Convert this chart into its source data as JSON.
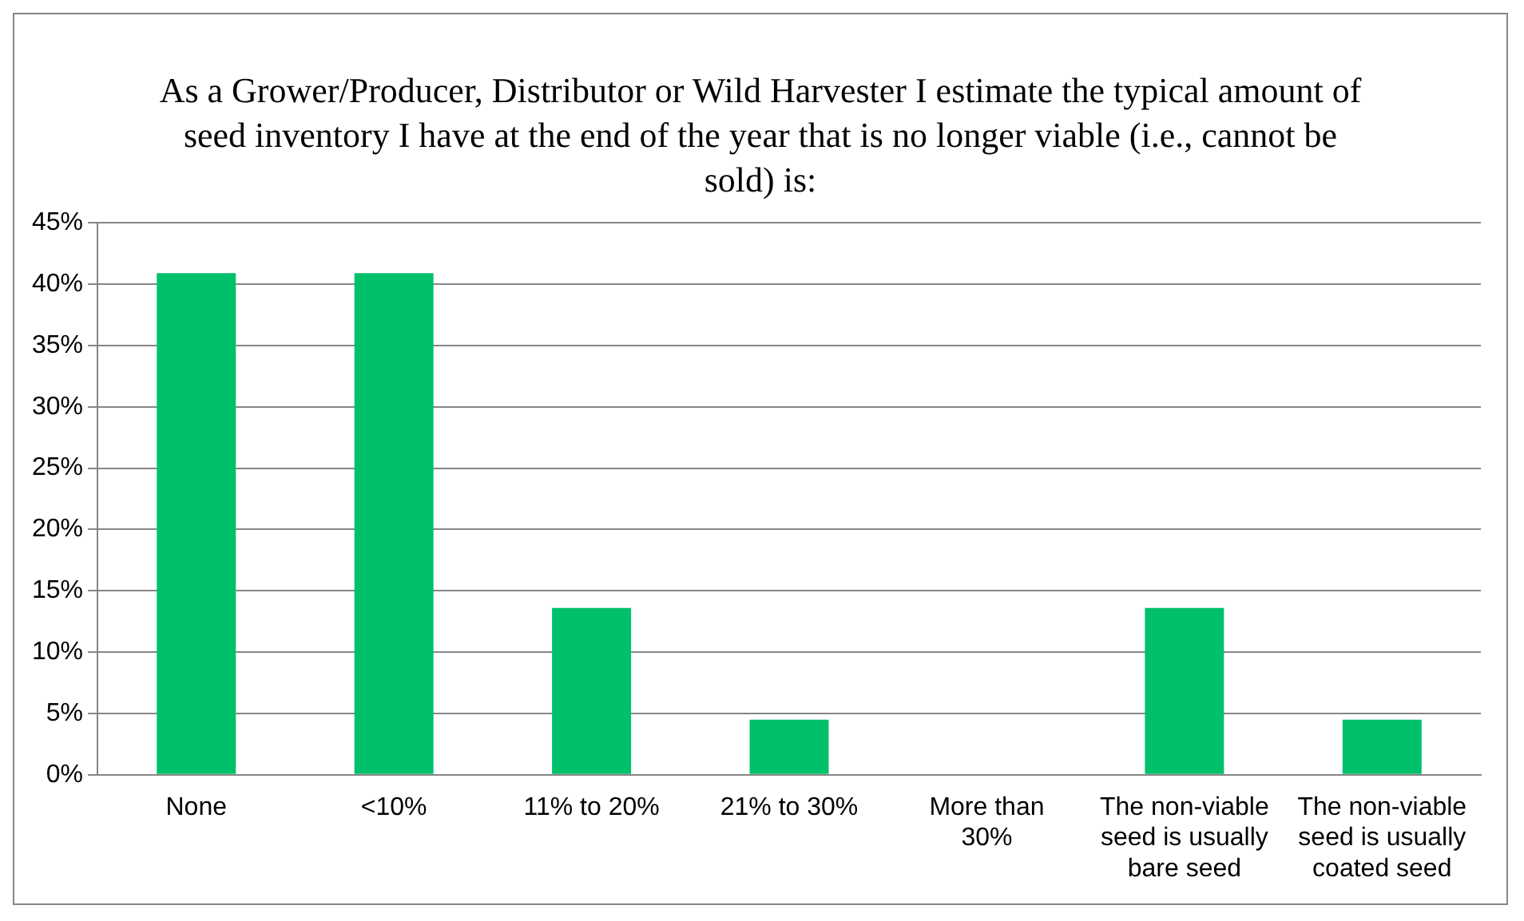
{
  "chart_data": {
    "type": "bar",
    "title": "As a Grower/Producer, Distributor or Wild Harvester I estimate the typical amount of seed inventory I have at the end of the year that is no longer viable (i.e., cannot be sold) is:",
    "categories": [
      "None",
      "<10%",
      "11% to 20%",
      "21% to 30%",
      "More than 30%",
      "The non-viable seed is usually bare seed",
      "The non-viable seed is usually coated seed"
    ],
    "values": [
      40.9,
      40.9,
      13.6,
      4.5,
      0,
      13.6,
      4.5
    ],
    "color": "#00c06b",
    "ylim": [
      0,
      45
    ],
    "yticks": [
      {
        "value": 0,
        "label": "0%"
      },
      {
        "value": 5,
        "label": "5%"
      },
      {
        "value": 10,
        "label": "10%"
      },
      {
        "value": 15,
        "label": "15%"
      },
      {
        "value": 20,
        "label": "20%"
      },
      {
        "value": 25,
        "label": "25%"
      },
      {
        "value": 30,
        "label": "30%"
      },
      {
        "value": 35,
        "label": "35%"
      },
      {
        "value": 40,
        "label": "40%"
      },
      {
        "value": 45,
        "label": "45%"
      }
    ],
    "grid": "y",
    "legend": false
  }
}
